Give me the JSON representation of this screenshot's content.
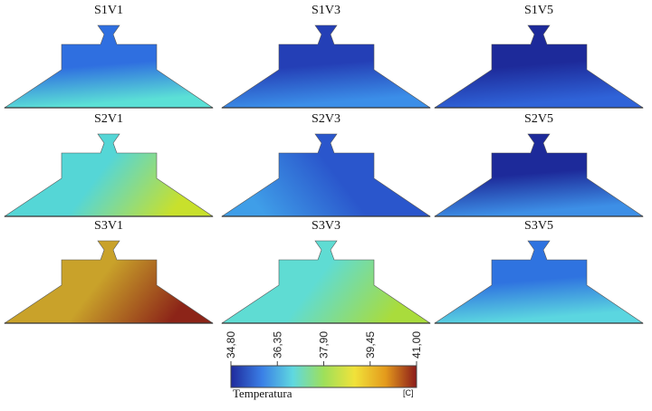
{
  "panels": [
    {
      "label": "S1V1",
      "row": 0,
      "col": 0,
      "base_color": "#2f6fe0",
      "hot_color": "#5be0d6",
      "hot_side": "bottom"
    },
    {
      "label": "S1V3",
      "row": 0,
      "col": 1,
      "base_color": "#243fb6",
      "hot_color": "#3b8ee8",
      "hot_side": "bottom"
    },
    {
      "label": "S1V5",
      "row": 0,
      "col": 2,
      "base_color": "#1d2a9a",
      "hot_color": "#2f63d8",
      "hot_side": "bottom"
    },
    {
      "label": "S2V1",
      "row": 1,
      "col": 0,
      "base_color": "#55d6d6",
      "hot_color": "#c8e02c",
      "hot_side": "right"
    },
    {
      "label": "S2V3",
      "row": 1,
      "col": 1,
      "base_color": "#2a56cc",
      "hot_color": "#3f9ee8",
      "hot_side": "left"
    },
    {
      "label": "S2V5",
      "row": 1,
      "col": 2,
      "base_color": "#1d2a9a",
      "hot_color": "#3d8fe6",
      "hot_side": "bottom"
    },
    {
      "label": "S3V1",
      "row": 2,
      "col": 0,
      "base_color": "#c9a22a",
      "hot_color": "#8c2418",
      "hot_side": "right"
    },
    {
      "label": "S3V3",
      "row": 2,
      "col": 1,
      "base_color": "#5fdcd3",
      "hot_color": "#a9dc3c",
      "hot_side": "right"
    },
    {
      "label": "S3V5",
      "row": 2,
      "col": 2,
      "base_color": "#2f73e0",
      "hot_color": "#5bd6e0",
      "hot_side": "bottom"
    }
  ],
  "colorbar": {
    "title": "Temperatura",
    "unit": "[C]",
    "ticks": [
      "34,80",
      "36,35",
      "37,90",
      "39,45",
      "41,00"
    ],
    "range": [
      34.8,
      41.0
    ],
    "colors": [
      "#1f2a9c",
      "#3a7fe6",
      "#5fd8e0",
      "#9ee05a",
      "#f1e23a",
      "#e49a1c",
      "#8b1a1a"
    ]
  }
}
